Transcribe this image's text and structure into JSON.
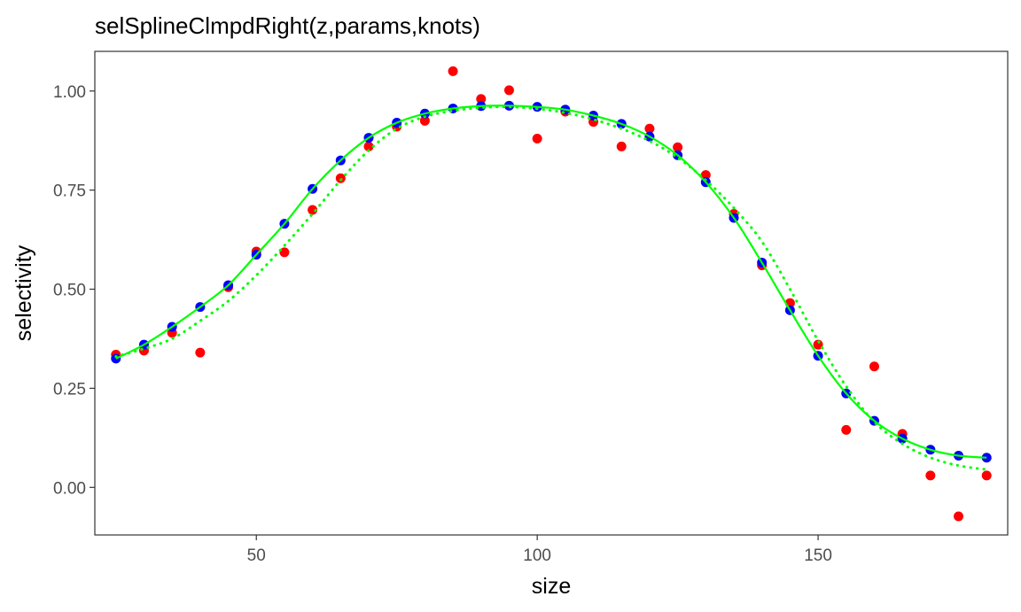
{
  "chart_data": {
    "type": "scatter",
    "title": "selSplineClmpdRight(z,params,knots)",
    "xlabel": "size",
    "ylabel": "selectivity",
    "xlim": [
      21.25,
      183.75
    ],
    "ylim": [
      -0.12,
      1.1
    ],
    "x_ticks": [
      50,
      100,
      150
    ],
    "x_tick_labels": [
      "50",
      "100",
      "150"
    ],
    "y_ticks": [
      0,
      0.25,
      0.5,
      0.75,
      1.0
    ],
    "y_tick_labels": [
      "0.00",
      "0.25",
      "0.50",
      "0.75",
      "1.00"
    ],
    "grid": false,
    "legend": "none",
    "colors": {
      "observed": "#ff0000",
      "estimated": "#0000ff",
      "curve": "#00ff00"
    },
    "series": [
      {
        "kind": "points",
        "color": "#ff0000",
        "x": [
          25,
          30,
          35,
          40,
          45,
          50,
          55,
          60,
          65,
          70,
          75,
          80,
          85,
          90,
          95,
          100,
          105,
          110,
          115,
          120,
          125,
          130,
          135,
          140,
          145,
          150,
          155,
          160,
          165,
          170,
          175,
          180
        ],
        "y": [
          0.335,
          0.345,
          0.39,
          0.34,
          0.505,
          0.595,
          0.593,
          0.7,
          0.78,
          0.86,
          0.91,
          0.925,
          1.05,
          0.98,
          1.002,
          0.88,
          0.948,
          0.922,
          0.86,
          0.905,
          0.858,
          0.788,
          0.69,
          0.56,
          0.465,
          0.36,
          0.145,
          0.305,
          0.135,
          0.03,
          -0.073,
          0.03
        ]
      },
      {
        "kind": "points",
        "color": "#0000ff",
        "x": [
          25,
          30,
          35,
          40,
          45,
          50,
          55,
          60,
          65,
          70,
          75,
          80,
          85,
          90,
          95,
          100,
          105,
          110,
          115,
          120,
          125,
          130,
          135,
          140,
          145,
          150,
          155,
          160,
          165,
          170,
          175,
          180
        ],
        "y": [
          0.325,
          0.36,
          0.405,
          0.455,
          0.51,
          0.587,
          0.665,
          0.753,
          0.825,
          0.882,
          0.92,
          0.943,
          0.956,
          0.962,
          0.963,
          0.96,
          0.953,
          0.938,
          0.917,
          0.885,
          0.838,
          0.77,
          0.68,
          0.567,
          0.447,
          0.332,
          0.237,
          0.168,
          0.123,
          0.095,
          0.08,
          0.075
        ]
      },
      {
        "kind": "line",
        "style": "solid",
        "color": "#00ff00",
        "x": [
          25,
          30,
          35,
          40,
          45,
          50,
          55,
          60,
          65,
          70,
          75,
          80,
          85,
          90,
          95,
          100,
          105,
          110,
          115,
          120,
          125,
          130,
          135,
          140,
          145,
          150,
          155,
          160,
          165,
          170,
          175,
          180
        ],
        "y": [
          0.325,
          0.36,
          0.405,
          0.455,
          0.51,
          0.587,
          0.665,
          0.753,
          0.825,
          0.882,
          0.92,
          0.943,
          0.956,
          0.962,
          0.963,
          0.96,
          0.953,
          0.938,
          0.917,
          0.885,
          0.838,
          0.77,
          0.68,
          0.567,
          0.447,
          0.332,
          0.237,
          0.168,
          0.123,
          0.095,
          0.08,
          0.075
        ]
      },
      {
        "kind": "line",
        "style": "dotted",
        "color": "#00ff00",
        "x": [
          25,
          30,
          35,
          40,
          45,
          50,
          55,
          60,
          65,
          70,
          75,
          80,
          85,
          90,
          95,
          100,
          105,
          110,
          115,
          120,
          125,
          130,
          135,
          140,
          145,
          150,
          155,
          160,
          165,
          170,
          175,
          180
        ],
        "y": [
          0.33,
          0.35,
          0.375,
          0.42,
          0.47,
          0.535,
          0.61,
          0.69,
          0.775,
          0.85,
          0.905,
          0.935,
          0.95,
          0.958,
          0.96,
          0.955,
          0.945,
          0.928,
          0.905,
          0.874,
          0.832,
          0.775,
          0.705,
          0.62,
          0.5,
          0.37,
          0.255,
          0.165,
          0.11,
          0.075,
          0.055,
          0.045
        ]
      }
    ]
  }
}
